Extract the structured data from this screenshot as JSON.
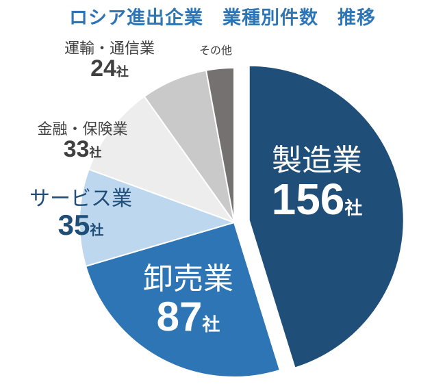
{
  "chart_data": {
    "type": "pie",
    "title": "ロシア進出企業　業種別件数　推移",
    "unit": "社",
    "slices": [
      {
        "label": "製造業",
        "value": 156,
        "color": "#1f4e79"
      },
      {
        "label": "卸売業",
        "value": 87,
        "color": "#2e75b6"
      },
      {
        "label": "サービス業",
        "value": 35,
        "color": "#bdd7ee"
      },
      {
        "label": "金融・保険業",
        "value": 33,
        "color": "#ededed"
      },
      {
        "label": "運輸・通信業",
        "value": 24,
        "color": "#c9c9c9"
      },
      {
        "label": "その他",
        "value": 10,
        "color": "#767171"
      }
    ]
  }
}
